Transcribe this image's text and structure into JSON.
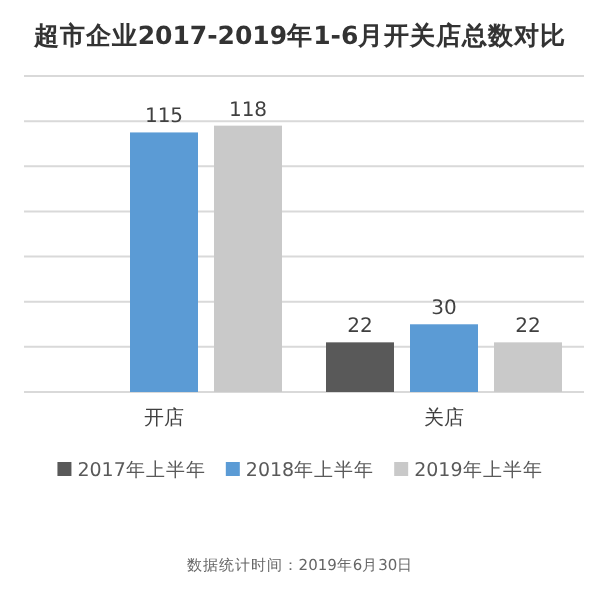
{
  "chart_data": {
    "type": "bar",
    "title": "超市企业2017-2019年1-6月开关店总数对比",
    "categories": [
      "开店",
      "关店"
    ],
    "series": [
      {
        "name": "2017年上半年",
        "color": "#595959",
        "values": [
          null,
          22
        ]
      },
      {
        "name": "2018年上半年",
        "color": "#5b9bd5",
        "values": [
          115,
          30
        ]
      },
      {
        "name": "2019年上半年",
        "color": "#c9c9c9",
        "values": [
          118,
          22
        ]
      }
    ],
    "ylim": [
      0,
      140
    ],
    "yticks": [
      {
        "value": 0,
        "label": null
      },
      {
        "value": 20,
        "label": null
      },
      {
        "value": 40,
        "label": null
      },
      {
        "value": 60,
        "label": null
      },
      {
        "value": 80,
        "label": null
      },
      {
        "value": 100,
        "label": null
      },
      {
        "value": 120,
        "label": null
      },
      {
        "value": 140,
        "label": null
      }
    ],
    "grid": "y",
    "legend": "bottom",
    "data_labels": true,
    "annotations": [
      "数据统计时间：2019年6月30日"
    ]
  }
}
